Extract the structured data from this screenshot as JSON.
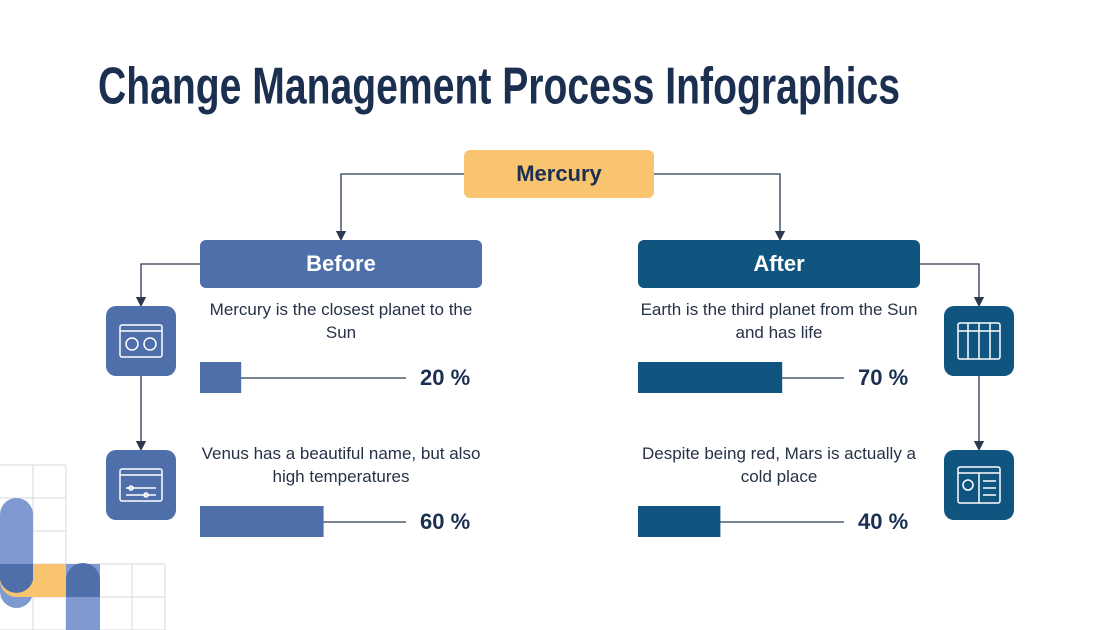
{
  "title": "Change Management Process Infographics",
  "root": {
    "label": "Mercury",
    "color": "#f9c46f"
  },
  "xlim": [
    0,
    100
  ],
  "branches": [
    {
      "label": "Before",
      "color": "#4f6faa",
      "items": [
        {
          "text": "Mercury is the closest planet to the Sun",
          "value": 20,
          "value_label": "20 %"
        },
        {
          "text": "Venus has a beautiful name, but also high temperatures",
          "value": 60,
          "value_label": "60 %"
        }
      ]
    },
    {
      "label": "After",
      "color": "#10557f",
      "items": [
        {
          "text": "Earth is the third planet from the Sun and has life",
          "value": 70,
          "value_label": "70 %"
        },
        {
          "text": "Despite being red, Mars is actually a cold place",
          "value": 40,
          "value_label": "40 %"
        }
      ]
    }
  ]
}
